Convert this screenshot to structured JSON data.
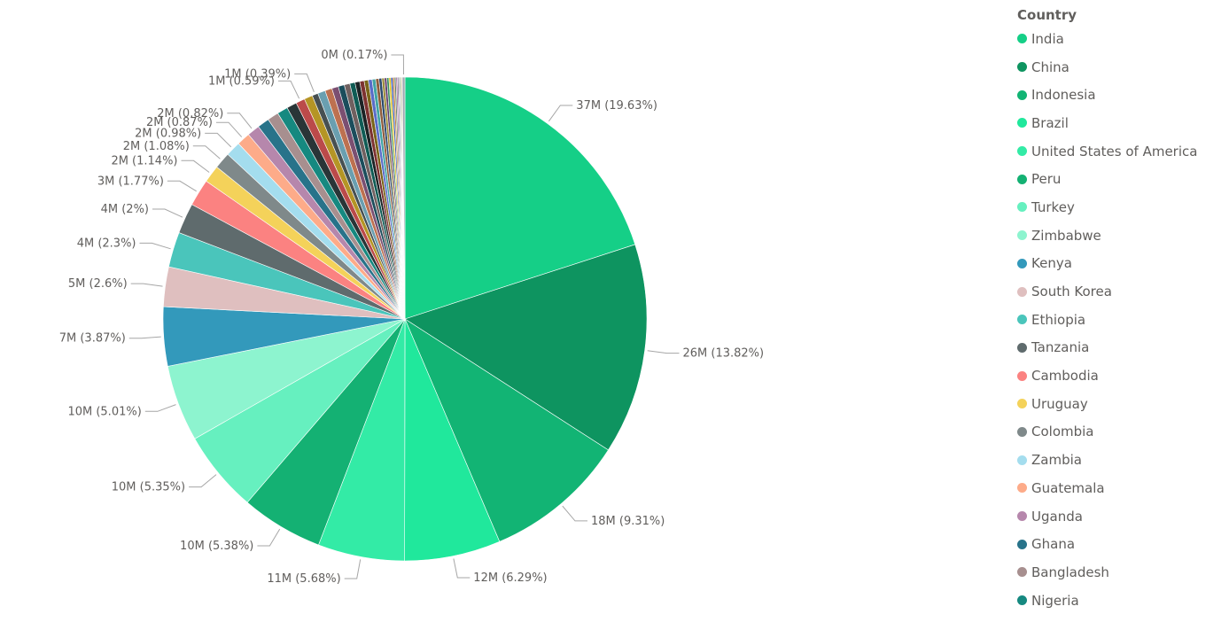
{
  "chart_data": {
    "type": "pie",
    "legend": {
      "title": "Country",
      "position": "right"
    },
    "slices": [
      {
        "label": "India",
        "value": 37,
        "display": "37M (19.63%)",
        "percent": 19.63,
        "color": "#15CF87"
      },
      {
        "label": "China",
        "value": 26,
        "display": "26M (13.82%)",
        "percent": 13.82,
        "color": "#0E9460"
      },
      {
        "label": "Indonesia",
        "value": 18,
        "display": "18M (9.31%)",
        "percent": 9.31,
        "color": "#12B474"
      },
      {
        "label": "Brazil",
        "value": 12,
        "display": "12M (6.29%)",
        "percent": 6.29,
        "color": "#20E89C"
      },
      {
        "label": "United States of America",
        "value": 11,
        "display": "11M (5.68%)",
        "percent": 5.68,
        "color": "#33EBA6"
      },
      {
        "label": "Peru",
        "value": 10,
        "display": "10M (5.38%)",
        "percent": 5.38,
        "color": "#14B173"
      },
      {
        "label": "Turkey",
        "value": 10,
        "display": "10M (5.35%)",
        "percent": 5.35,
        "color": "#66F0BF"
      },
      {
        "label": "Zimbabwe",
        "value": 10,
        "display": "10M (5.01%)",
        "percent": 5.01,
        "color": "#8DF4CF"
      },
      {
        "label": "Kenya",
        "value": 7,
        "display": "7M (3.87%)",
        "percent": 3.87,
        "color": "#3399BB"
      },
      {
        "label": "South Korea",
        "value": 5,
        "display": "5M (2.6%)",
        "percent": 2.6,
        "color": "#DFBFBF"
      },
      {
        "label": "Ethiopia",
        "value": 4,
        "display": "4M (2.3%)",
        "percent": 2.3,
        "color": "#4AC5BB"
      },
      {
        "label": "Tanzania",
        "value": 4,
        "display": "4M (2%)",
        "percent": 2.0,
        "color": "#5F6B6D"
      },
      {
        "label": "Cambodia",
        "value": 3,
        "display": "3M (1.77%)",
        "percent": 1.77,
        "color": "#FB8281"
      },
      {
        "label": "Uruguay",
        "value": 2,
        "display": "2M (1.14%)",
        "percent": 1.14,
        "color": "#F4D25A"
      },
      {
        "label": "Colombia",
        "value": 2,
        "display": "2M (1.08%)",
        "percent": 1.08,
        "color": "#7F898A"
      },
      {
        "label": "Zambia",
        "value": 2,
        "display": "2M (0.98%)",
        "percent": 0.98,
        "color": "#A4DDEE"
      },
      {
        "label": "Guatemala",
        "value": 2,
        "display": "2M (0.87%)",
        "percent": 0.87,
        "color": "#FDAB89"
      },
      {
        "label": "Uganda",
        "value": 2,
        "display": "2M (0.82%)",
        "percent": 0.82,
        "color": "#B687AC"
      },
      {
        "label": "Ghana",
        "value": 1,
        "display": "",
        "percent": 0.78,
        "color": "#28738A"
      },
      {
        "label": "Bangladesh",
        "value": 1,
        "display": "",
        "percent": 0.74,
        "color": "#A78F8F"
      },
      {
        "label": "Nigeria",
        "value": 1,
        "display": "",
        "percent": 0.7,
        "color": "#168980"
      },
      {
        "label": "",
        "value": 1,
        "display": "",
        "percent": 0.66,
        "color": "#293537"
      },
      {
        "label": "",
        "value": 1,
        "display": "1M (0.59%)",
        "percent": 0.59,
        "color": "#BB4A4A"
      },
      {
        "label": "",
        "value": 1,
        "display": "",
        "percent": 0.55,
        "color": "#B59525"
      },
      {
        "label": "",
        "value": 1,
        "display": "1M (0.39%)",
        "percent": 0.39,
        "color": "#475052"
      },
      {
        "label": "",
        "value": 1,
        "display": "",
        "percent": 0.5,
        "color": "#6A9FB0"
      },
      {
        "label": "",
        "value": 1,
        "display": "",
        "percent": 0.46,
        "color": "#BD7150"
      },
      {
        "label": "",
        "value": 1,
        "display": "",
        "percent": 0.43,
        "color": "#7B4F71"
      },
      {
        "label": "",
        "value": 1,
        "display": "",
        "percent": 0.4,
        "color": "#1B4D5C"
      },
      {
        "label": "",
        "value": 1,
        "display": "",
        "percent": 0.37,
        "color": "#706060"
      },
      {
        "label": "",
        "value": 1,
        "display": "",
        "percent": 0.34,
        "color": "#0F5C55"
      },
      {
        "label": "",
        "value": 1,
        "display": "",
        "percent": 0.31,
        "color": "#1C2325"
      },
      {
        "label": "",
        "value": 1,
        "display": "",
        "percent": 0.29,
        "color": "#7D3231"
      },
      {
        "label": "",
        "value": 1,
        "display": "",
        "percent": 0.27,
        "color": "#796419"
      },
      {
        "label": "",
        "value": 0,
        "display": "",
        "percent": 0.25,
        "color": "#5A6CC8"
      },
      {
        "label": "",
        "value": 0,
        "display": "",
        "percent": 0.23,
        "color": "#42A4A4"
      },
      {
        "label": "",
        "value": 0,
        "display": "",
        "percent": 0.21,
        "color": "#8E5C3C"
      },
      {
        "label": "",
        "value": 0,
        "display": "",
        "percent": 0.19,
        "color": "#2C4A6E"
      },
      {
        "label": "",
        "value": 0,
        "display": "",
        "percent": 0.17,
        "color": "#9C8C3A"
      },
      {
        "label": "",
        "value": 0,
        "display": "",
        "percent": 0.15,
        "color": "#5E3A6E"
      },
      {
        "label": "",
        "value": 0,
        "display": "",
        "percent": 0.14,
        "color": "#3A8C5E"
      },
      {
        "label": "",
        "value": 0,
        "display": "",
        "percent": 0.13,
        "color": "#E0C020"
      },
      {
        "label": "",
        "value": 0,
        "display": "",
        "percent": 0.12,
        "color": "#3050B0"
      },
      {
        "label": "",
        "value": 0,
        "display": "",
        "percent": 0.11,
        "color": "#C08040"
      },
      {
        "label": "",
        "value": 0,
        "display": "",
        "percent": 0.1,
        "color": "#608060"
      },
      {
        "label": "",
        "value": 0,
        "display": "",
        "percent": 0.09,
        "color": "#A060A0"
      },
      {
        "label": "",
        "value": 0,
        "display": "",
        "percent": 0.08,
        "color": "#606080"
      },
      {
        "label": "",
        "value": 0,
        "display": "",
        "percent": 0.07,
        "color": "#C0A0A0"
      },
      {
        "label": "",
        "value": 0,
        "display": "",
        "percent": 0.06,
        "color": "#408080"
      },
      {
        "label": "",
        "value": 0,
        "display": "",
        "percent": 0.06,
        "color": "#B0B040"
      },
      {
        "label": "",
        "value": 0,
        "display": "",
        "percent": 0.05,
        "color": "#806040"
      },
      {
        "label": "",
        "value": 0,
        "display": "0M (0.17%)",
        "percent": 0.17,
        "color": "#9FA8B0"
      }
    ]
  }
}
